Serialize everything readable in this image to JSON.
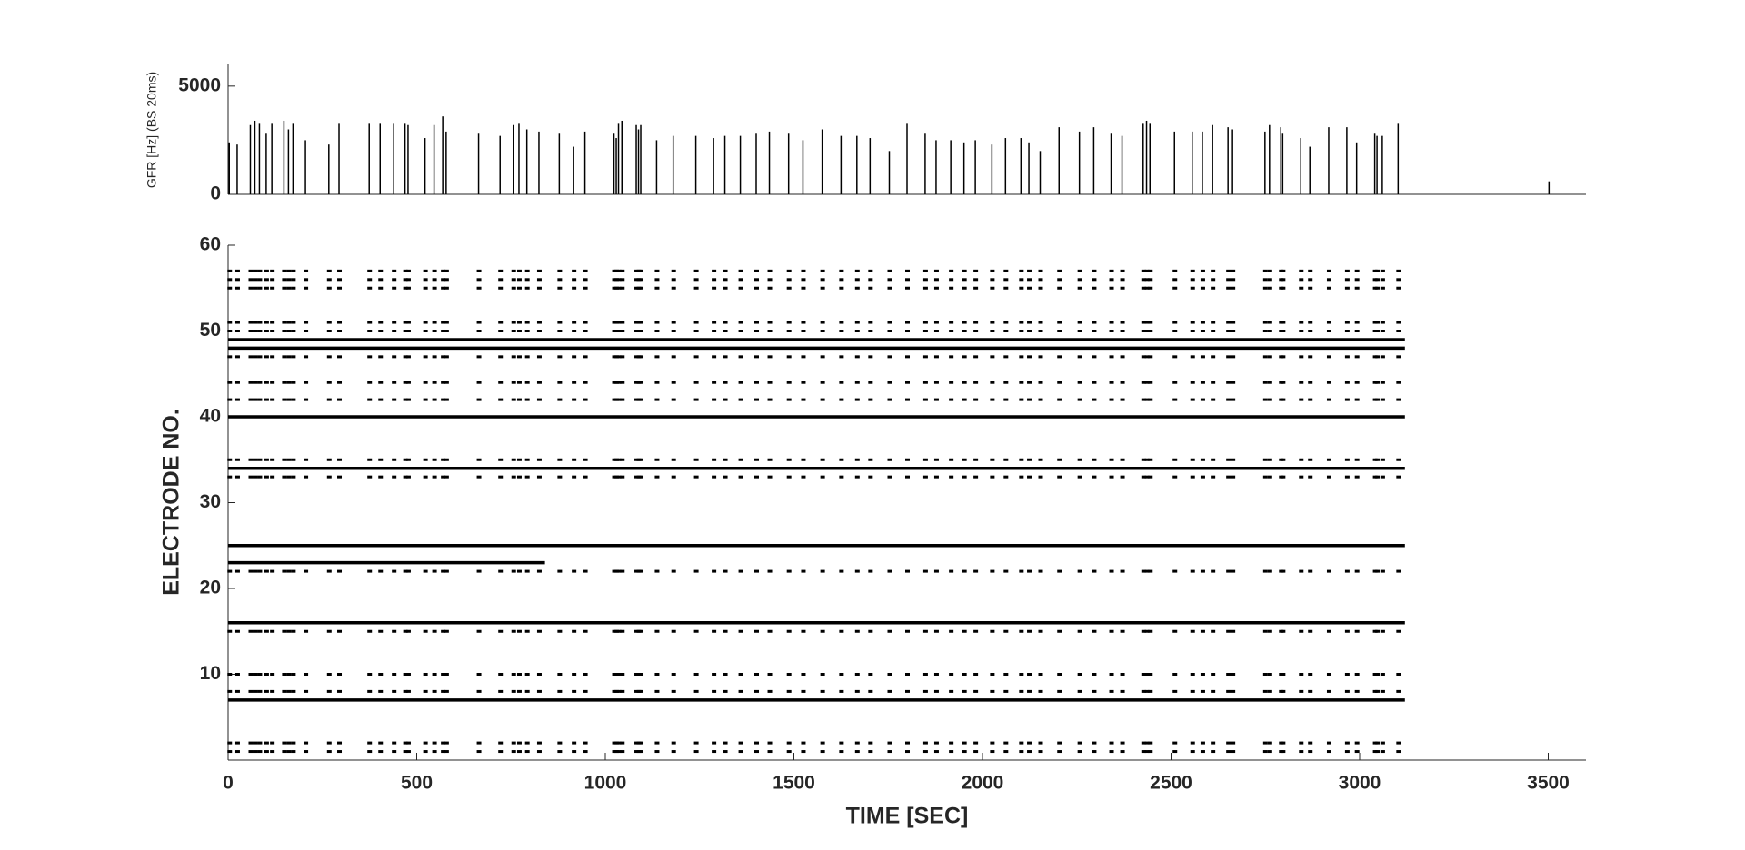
{
  "chart_data": [
    {
      "type": "spike",
      "ylabel": "GFR [Hz] (BS 20ms)",
      "color": "#000000",
      "xlim": [
        0,
        3600
      ],
      "ylim": [
        0,
        6000
      ],
      "yticks": [
        0,
        5000
      ],
      "x": [
        3,
        24,
        59,
        71,
        83,
        101,
        116,
        148,
        160,
        172,
        205,
        267,
        294,
        374,
        403,
        439,
        469,
        477,
        522,
        546,
        569,
        578,
        664,
        721,
        756,
        771,
        792,
        824,
        878,
        916,
        946,
        1023,
        1029,
        1035,
        1044,
        1082,
        1088,
        1094,
        1136,
        1180,
        1240,
        1287,
        1317,
        1358,
        1400,
        1435,
        1486,
        1524,
        1575,
        1625,
        1667,
        1702,
        1753,
        1800,
        1848,
        1877,
        1916,
        1951,
        1981,
        2025,
        2061,
        2102,
        2123,
        2153,
        2203,
        2257,
        2295,
        2341,
        2370,
        2426,
        2435,
        2444,
        2509,
        2556,
        2583,
        2610,
        2651,
        2663,
        2749,
        2761,
        2791,
        2796,
        2844,
        2868,
        2918,
        2966,
        2992,
        3040,
        3046,
        3060,
        3102,
        3502
      ],
      "values": [
        2400,
        2300,
        3200,
        3400,
        3300,
        2800,
        3300,
        3400,
        3000,
        3300,
        2500,
        2300,
        3300,
        3300,
        3300,
        3300,
        3300,
        3200,
        2600,
        3200,
        3600,
        2900,
        2800,
        2700,
        3200,
        3300,
        3000,
        2900,
        2800,
        2200,
        2900,
        2800,
        2600,
        3300,
        3400,
        3200,
        3000,
        3200,
        2500,
        2700,
        2700,
        2600,
        2700,
        2700,
        2800,
        2900,
        2800,
        2500,
        3000,
        2700,
        2700,
        2600,
        2000,
        3300,
        2800,
        2500,
        2500,
        2400,
        2500,
        2300,
        2600,
        2600,
        2400,
        2000,
        3100,
        2900,
        3100,
        2800,
        2700,
        3300,
        3400,
        3300,
        2900,
        2900,
        2900,
        3200,
        3100,
        3000,
        2900,
        3200,
        3100,
        2800,
        2600,
        2200,
        3100,
        3100,
        2400,
        2800,
        2700,
        2700,
        3300,
        600
      ]
    },
    {
      "type": "raster",
      "xlabel": "TIME [SEC]",
      "ylabel": "ELECTRODE NO.",
      "color": "#000000",
      "xlim": [
        0,
        3600
      ],
      "xticks": [
        0,
        500,
        1000,
        1500,
        2000,
        2500,
        3000,
        3500
      ],
      "ylim": [
        0,
        60
      ],
      "yticks": [
        10,
        20,
        30,
        40,
        50,
        60
      ],
      "burst_electrodes": [
        1,
        2,
        8,
        10,
        15,
        22,
        33,
        35,
        42,
        44,
        47,
        50,
        51,
        55,
        56,
        57
      ],
      "tonic": [
        {
          "electrode": 7,
          "xrange": [
            0,
            3120
          ]
        },
        {
          "electrode": 16,
          "xrange": [
            0,
            3120
          ]
        },
        {
          "electrode": 23,
          "xrange": [
            0,
            840
          ]
        },
        {
          "electrode": 25,
          "xrange": [
            0,
            3120
          ]
        },
        {
          "electrode": 34,
          "xrange": [
            0,
            3120
          ]
        },
        {
          "electrode": 40,
          "xrange": [
            0,
            3120
          ]
        },
        {
          "electrode": 48,
          "xrange": [
            0,
            3120
          ]
        },
        {
          "electrode": 49,
          "xrange": [
            0,
            3120
          ]
        }
      ]
    }
  ]
}
